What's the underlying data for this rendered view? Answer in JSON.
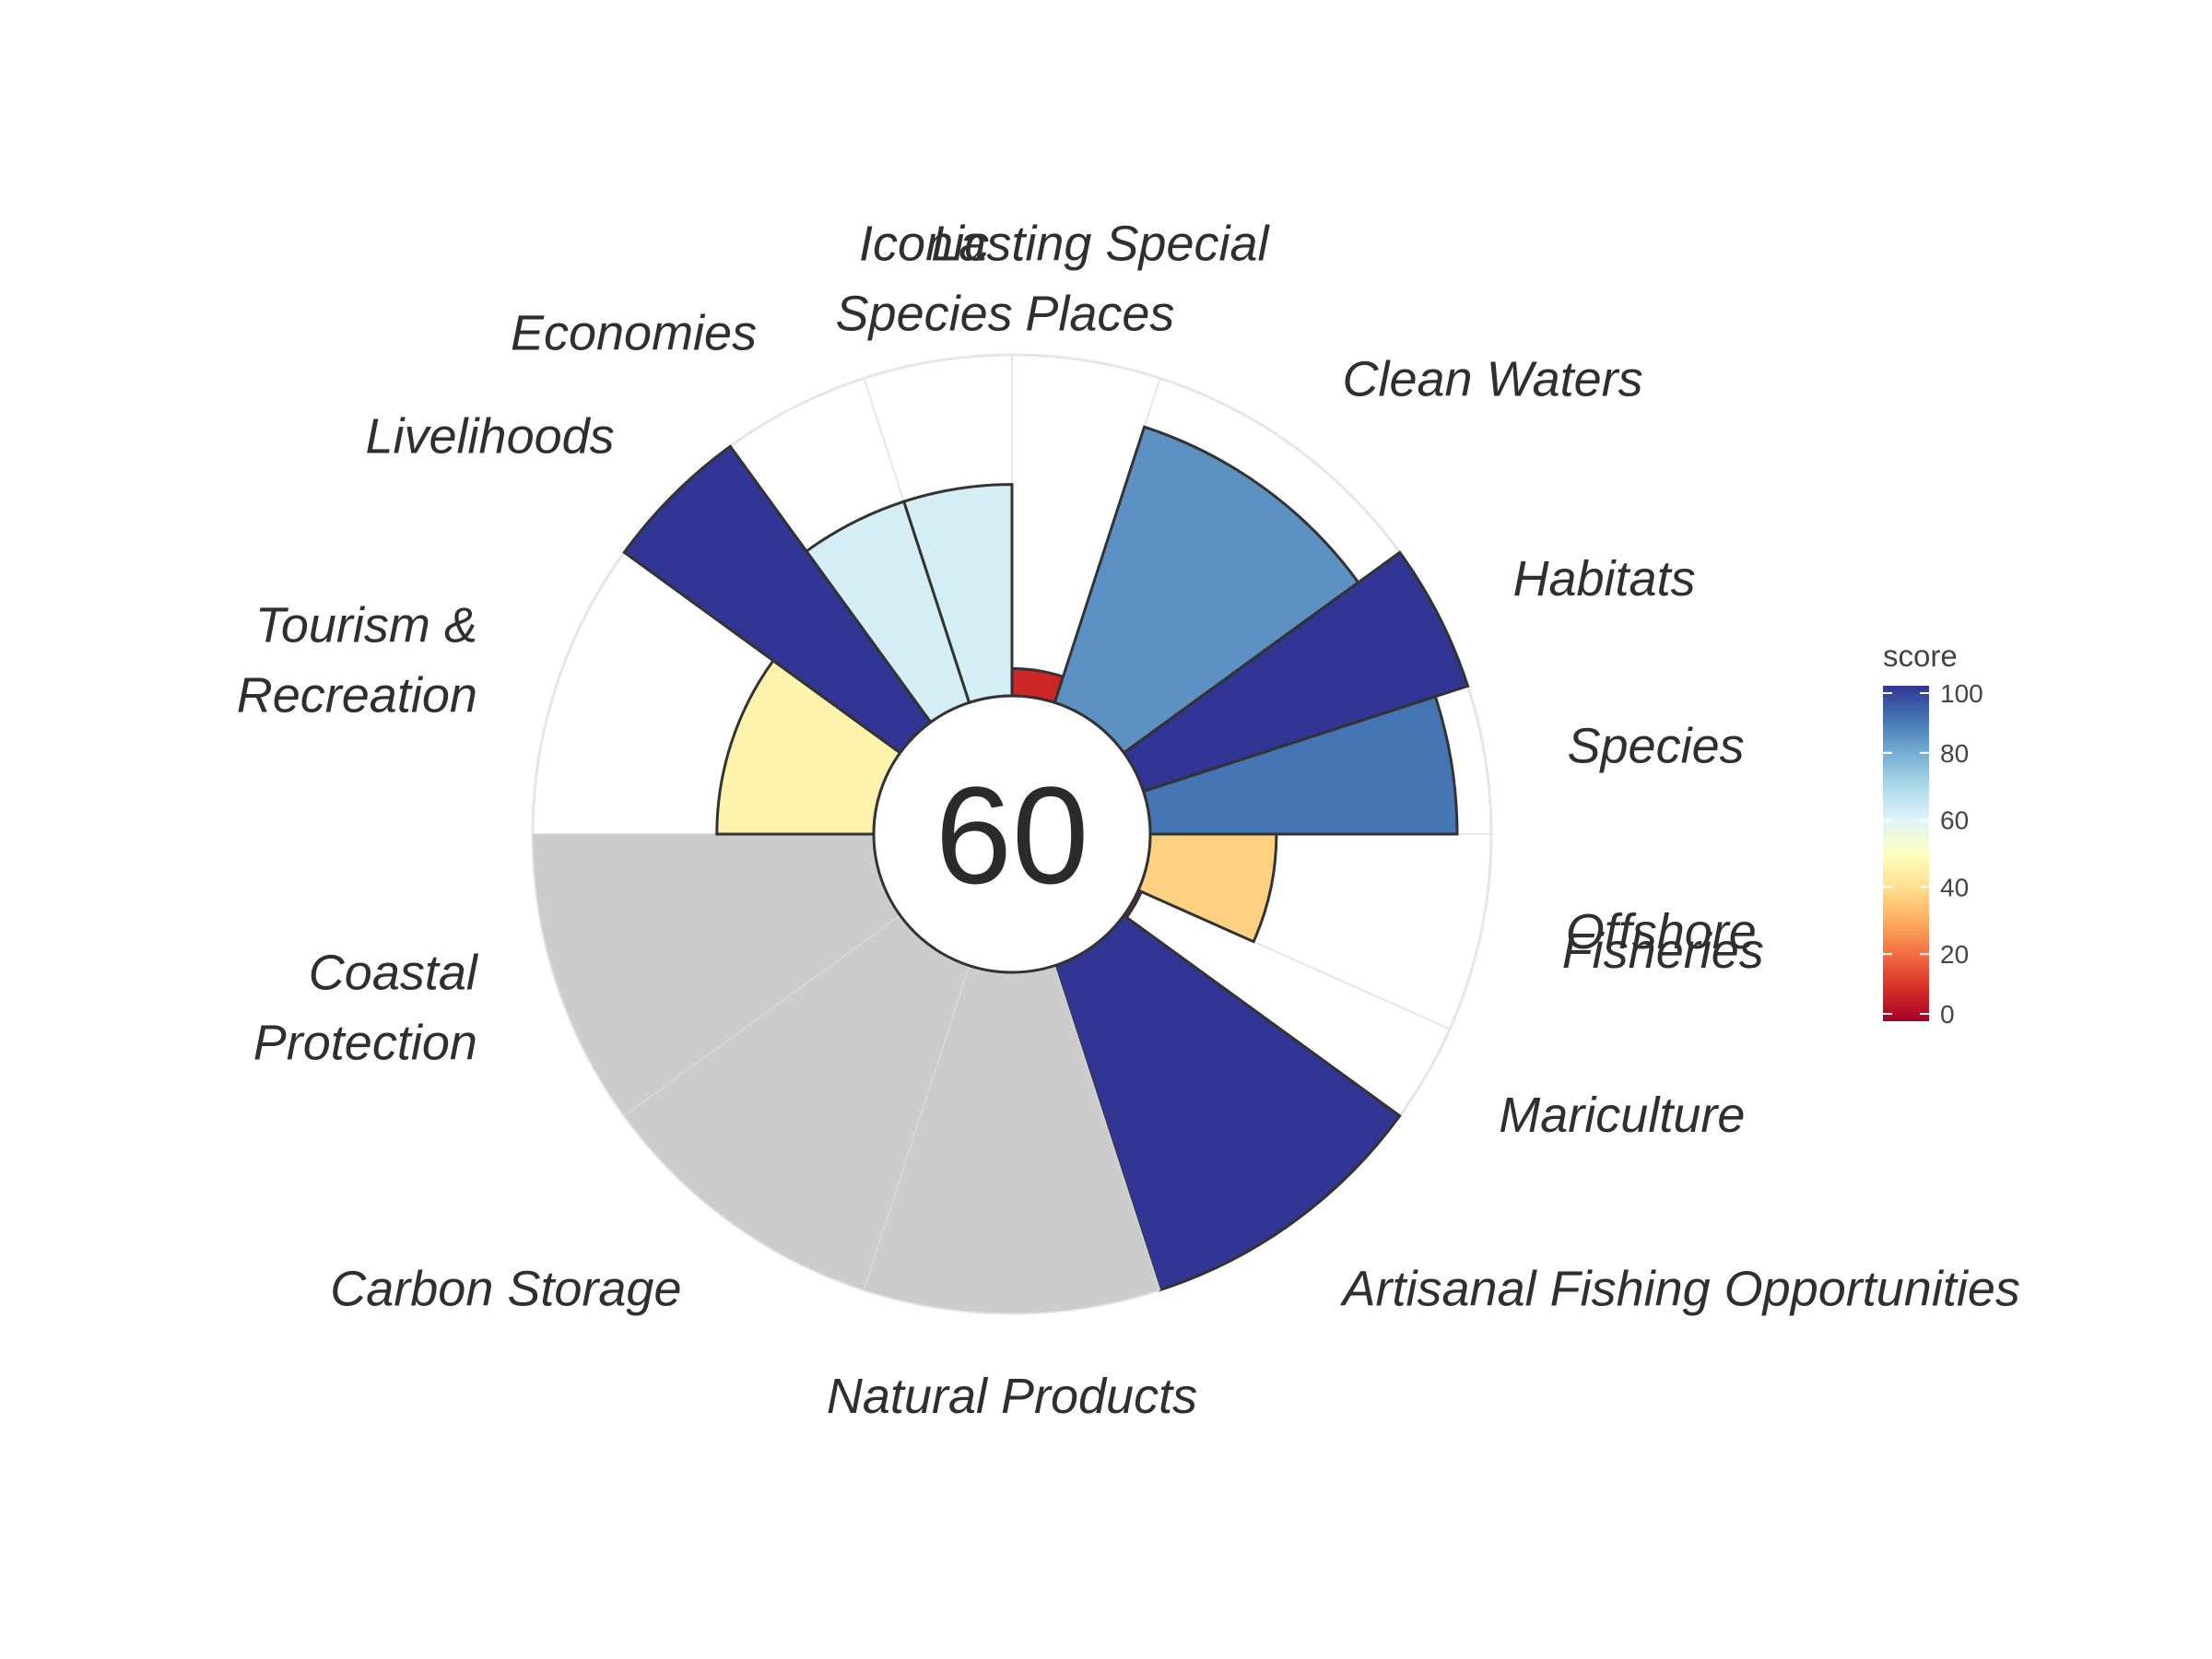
{
  "chart_data": {
    "type": "polar-bar",
    "center_label": "60",
    "legend": {
      "title": "score",
      "ticks": [
        "0",
        "20",
        "40",
        "60",
        "80",
        "100"
      ],
      "range": [
        0,
        100
      ]
    },
    "na_color": "#cccccc",
    "colors": {
      "low": "#a50026",
      "mid": "#ffffbf",
      "high": "#313695",
      "outline": "#333333",
      "grid": "#e6e6e6"
    },
    "goals": [
      {
        "label": "Fisheries",
        "score": 37,
        "weight": 1.0
      },
      {
        "label": "Mariculture",
        "score": 1,
        "weight": 0.5
      },
      {
        "label": "Artisanal Fishing Opportunities",
        "score": 100,
        "weight": 1.5
      },
      {
        "label": "Natural Products",
        "score": null,
        "weight": 1.5
      },
      {
        "label": "Carbon Storage",
        "score": null,
        "weight": 1.5
      },
      {
        "label": "Coastal\nProtection",
        "score": null,
        "weight": 1.5
      },
      {
        "label": "Tourism &\nRecreation",
        "score": 46,
        "weight": 1.5
      },
      {
        "label": "Livelihoods",
        "score": 100,
        "weight": 0.75
      },
      {
        "label": "Economies",
        "score": 62,
        "weight": 0.75
      },
      {
        "label": "Iconic\nSpecies",
        "score": 62,
        "weight": 0.75
      },
      {
        "label": "Lasting Special\nPlaces",
        "score": 8,
        "weight": 0.75
      },
      {
        "label": "Clean Waters",
        "score": 85,
        "weight": 1.5
      },
      {
        "label": "Habitats",
        "score": 100,
        "weight": 0.75
      },
      {
        "label": "Species",
        "score": 90,
        "weight": 0.75
      },
      {
        "label": "Offshore",
        "score": null,
        "weight": 0.0
      }
    ]
  }
}
